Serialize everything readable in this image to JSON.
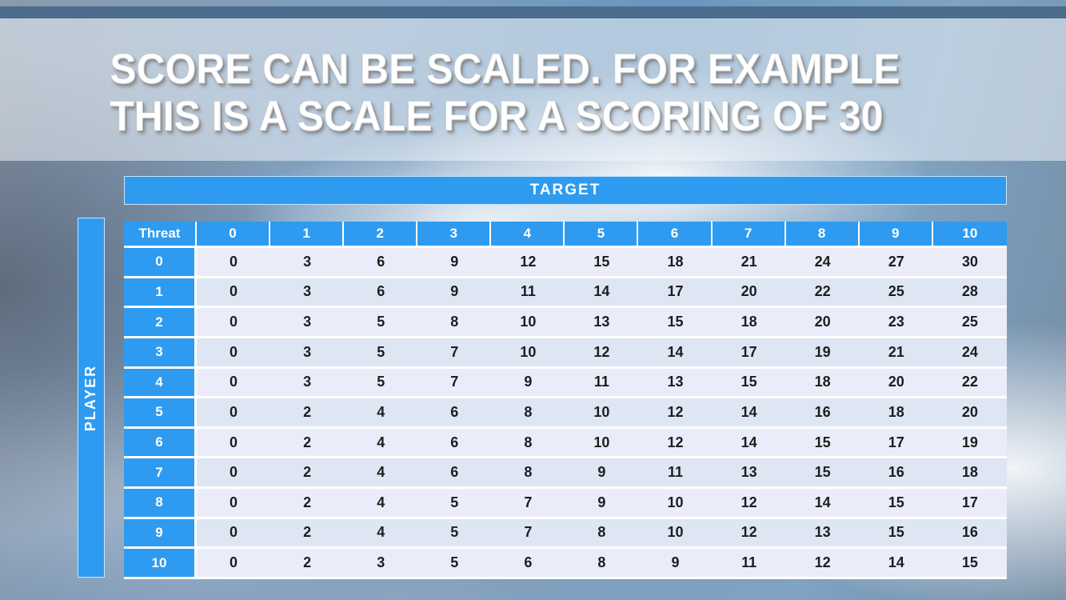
{
  "slide": {
    "title_line1": "SCORE CAN BE SCALED. FOR EXAMPLE",
    "title_line2": "THIS IS A SCALE FOR A SCORING OF 30"
  },
  "score_table": {
    "target_label": "TARGET",
    "player_label": "PLAYER",
    "corner_label": "Threat",
    "col_headers": [
      "0",
      "1",
      "2",
      "3",
      "4",
      "5",
      "6",
      "7",
      "8",
      "9",
      "10"
    ],
    "row_headers": [
      "0",
      "1",
      "2",
      "3",
      "4",
      "5",
      "6",
      "7",
      "8",
      "9",
      "10"
    ],
    "rows": [
      [
        0,
        3,
        6,
        9,
        12,
        15,
        18,
        21,
        24,
        27,
        30
      ],
      [
        0,
        3,
        6,
        9,
        11,
        14,
        17,
        20,
        22,
        25,
        28
      ],
      [
        0,
        3,
        5,
        8,
        10,
        13,
        15,
        18,
        20,
        23,
        25
      ],
      [
        0,
        3,
        5,
        7,
        10,
        12,
        14,
        17,
        19,
        21,
        24
      ],
      [
        0,
        3,
        5,
        7,
        9,
        11,
        13,
        15,
        18,
        20,
        22
      ],
      [
        0,
        2,
        4,
        6,
        8,
        10,
        12,
        14,
        16,
        18,
        20
      ],
      [
        0,
        2,
        4,
        6,
        8,
        10,
        12,
        14,
        15,
        17,
        19
      ],
      [
        0,
        2,
        4,
        6,
        8,
        9,
        11,
        13,
        15,
        16,
        18
      ],
      [
        0,
        2,
        4,
        5,
        7,
        9,
        10,
        12,
        14,
        15,
        17
      ],
      [
        0,
        2,
        4,
        5,
        7,
        8,
        10,
        12,
        13,
        15,
        16
      ],
      [
        0,
        2,
        3,
        5,
        6,
        8,
        9,
        11,
        12,
        14,
        15
      ]
    ]
  },
  "colors": {
    "header_blue": "#2E9BF0",
    "row_light": "#EAEDF9",
    "row_dark": "#DEE6F4",
    "grid_white": "#FFFFFF",
    "title_text": "#FFFFFF",
    "top_strip": "#48688A"
  }
}
